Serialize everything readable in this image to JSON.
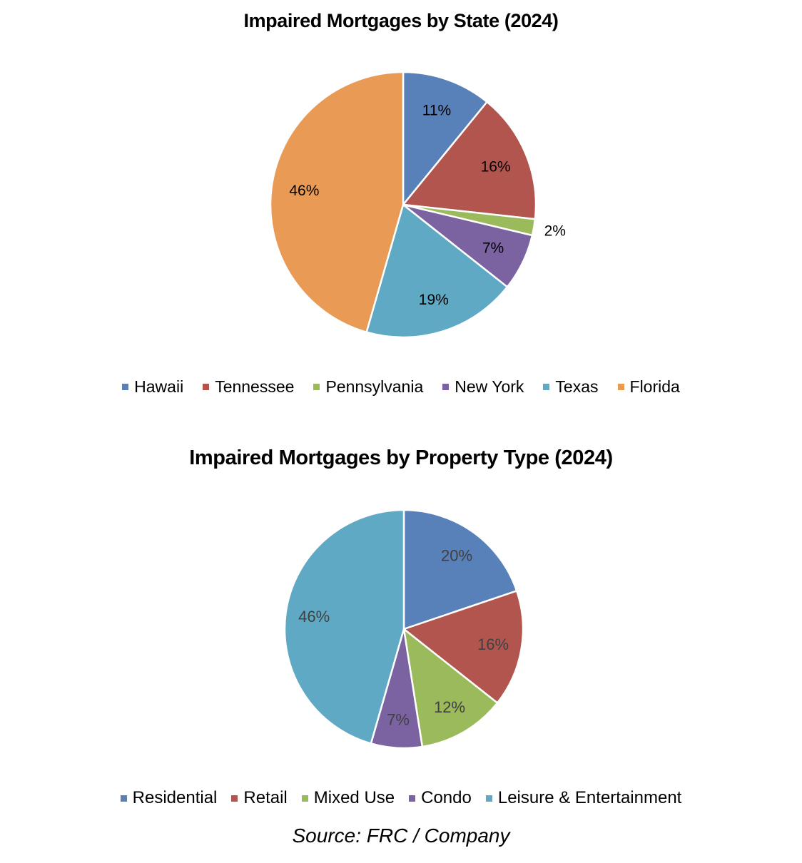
{
  "chart_data": [
    {
      "type": "pie",
      "title": "Impaired Mortgages by State (2024)",
      "categories": [
        "Hawaii",
        "Tennessee",
        "Pennsylvania",
        "New York",
        "Texas",
        "Florida"
      ],
      "values": [
        11,
        16,
        2,
        7,
        19,
        46
      ],
      "data_labels": [
        "11%",
        "16%",
        "2%",
        "7%",
        "19%",
        "46%"
      ],
      "colors": [
        "#5880B9",
        "#B2554F",
        "#9BBA5B",
        "#7B62A0",
        "#5FA9C4",
        "#E99A55"
      ],
      "label_color": "#000000",
      "legend_position": "bottom"
    },
    {
      "type": "pie",
      "title": "Impaired Mortgages by Property Type (2024)",
      "categories": [
        "Residential",
        "Retail",
        "Mixed Use",
        "Condo",
        "Leisure & Entertainment"
      ],
      "values": [
        20,
        16,
        12,
        7,
        46
      ],
      "data_labels": [
        "20%",
        "16%",
        "12%",
        "7%",
        "46%"
      ],
      "colors": [
        "#5880B9",
        "#B2554F",
        "#9BBA5B",
        "#7B62A0",
        "#5FA9C4"
      ],
      "label_color": "#404040",
      "legend_position": "bottom"
    }
  ],
  "source": "Source: FRC / Company"
}
